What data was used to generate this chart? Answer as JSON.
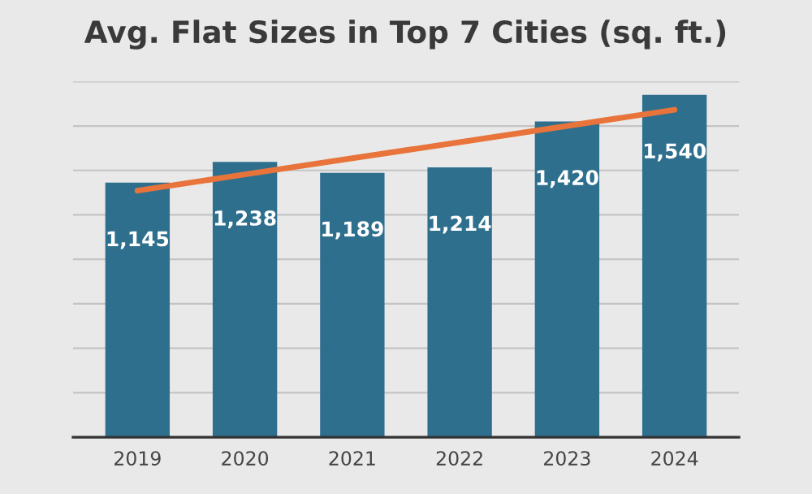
{
  "chart_data": {
    "type": "bar",
    "title": "Avg. Flat Sizes in Top 7 Cities (sq. ft.)",
    "categories": [
      "2019",
      "2020",
      "2021",
      "2022",
      "2023",
      "2024"
    ],
    "series": [
      {
        "color": "#2e6f8e",
        "values": [
          1145,
          1238,
          1189,
          1214,
          1420,
          1540
        ],
        "value_labels": [
          "1,145",
          "1,238",
          "1,189",
          "1,214",
          "1,420",
          "1,540"
        ]
      },
      {
        "type": "line",
        "color": "#e8743b",
        "values": [
          1109,
          1182,
          1255,
          1327,
          1400,
          1473
        ]
      }
    ],
    "ylim": [
      0,
      1600
    ],
    "yticks": [
      {
        "value": 0,
        "label": null
      },
      {
        "value": 200,
        "label": null
      },
      {
        "value": 400,
        "label": null
      },
      {
        "value": 600,
        "label": null
      },
      {
        "value": 800,
        "label": null
      },
      {
        "value": 1000,
        "label": null
      },
      {
        "value": 1200,
        "label": null
      },
      {
        "value": 1400,
        "label": null
      },
      {
        "value": 1600,
        "label": null
      }
    ],
    "grid": "y",
    "tick_labels": "x"
  }
}
